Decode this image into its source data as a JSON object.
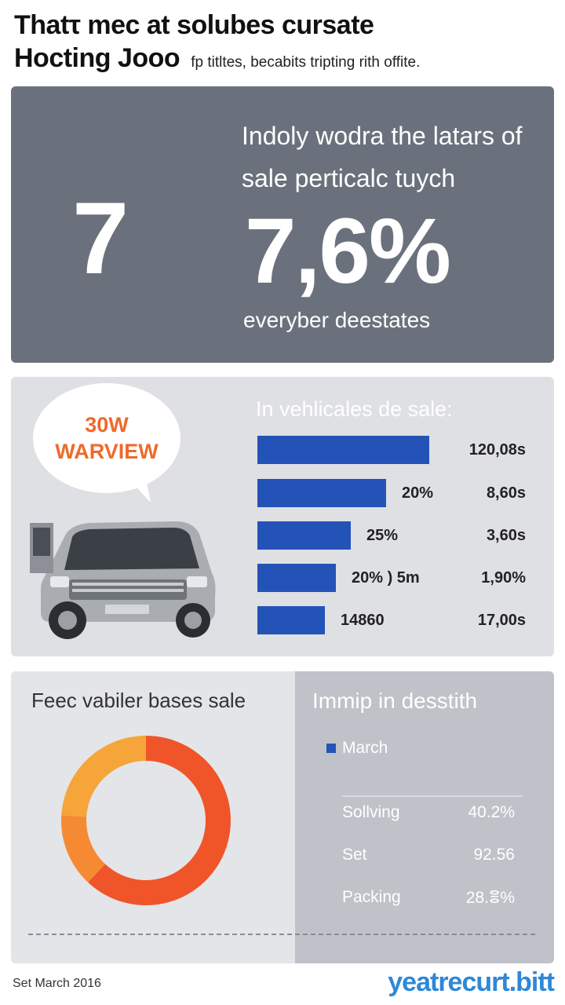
{
  "header": {
    "title_line1": "Thatτ mec at solubes cursate",
    "title_line2": "Hocting Jooo",
    "subtitle": "fp titltes, becabits tripting rith offite."
  },
  "stat_panel": {
    "big_left": "7",
    "headline": "Indoly wodra the latars of sale perticalc tuych",
    "big_right": "7,6%",
    "caption": "everyber deestates",
    "bg_color": "#6b717c"
  },
  "callout": {
    "line1": "30W",
    "line2": "WARVIEW",
    "color": "#ee6a2c"
  },
  "chart_data": [
    {
      "type": "bar",
      "orientation": "horizontal",
      "title": "In vehlicales de sale:",
      "bar_color": "#2453b8",
      "bars": [
        {
          "fraction": 0.59,
          "label": "",
          "value": "120,08s"
        },
        {
          "fraction": 0.44,
          "label": "20%",
          "value": "8,60s"
        },
        {
          "fraction": 0.32,
          "label": "25%",
          "value": "3,60s"
        },
        {
          "fraction": 0.27,
          "label": "20% ) 5m",
          "value": "1,90%"
        },
        {
          "fraction": 0.23,
          "label": "14860",
          "value": "17,00s"
        }
      ]
    },
    {
      "type": "pie",
      "style": "donut",
      "title": "Feec vabiler bases sale",
      "slices": [
        {
          "value": 62,
          "color": "#f0552a"
        },
        {
          "value": 14,
          "color": "#f68a33"
        },
        {
          "value": 24,
          "color": "#f5a53a"
        }
      ]
    }
  ],
  "legend_panel": {
    "title": "Immip in desstith",
    "key_label": "March",
    "rows": [
      {
        "label": "Sollving",
        "value": "40.2%"
      },
      {
        "label": "Set",
        "value": "92.56"
      },
      {
        "label": "Packing",
        "value": "28.ⴻ%"
      }
    ]
  },
  "footer": {
    "left": "Set March 2016",
    "right": "yeatrecurt.bitt"
  }
}
